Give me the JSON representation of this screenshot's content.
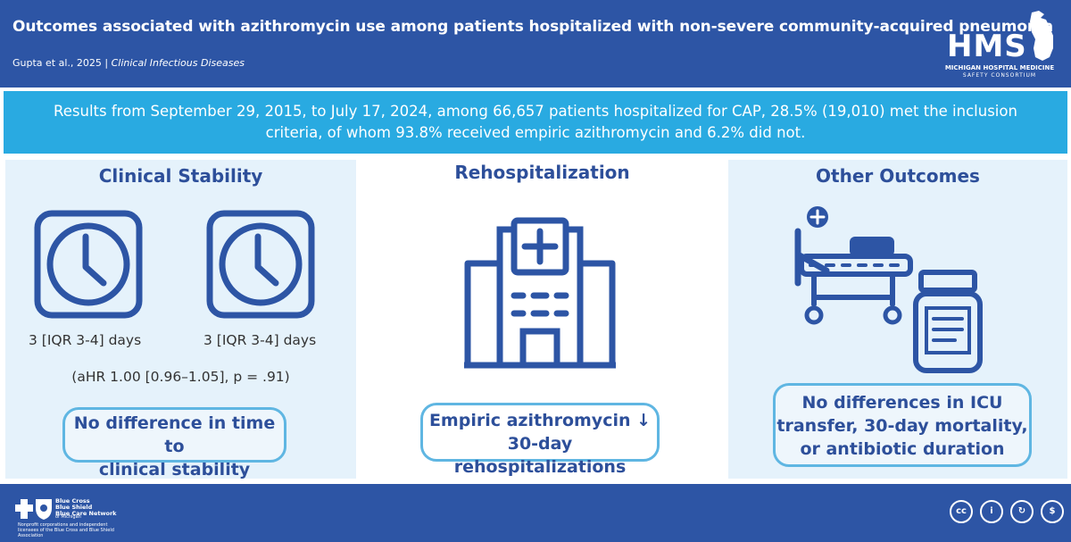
{
  "header": {
    "title": "Outcomes associated with azithromycin use among patients hospitalized with non-severe community-acquired pneumonia",
    "authors": "Gupta et al., 2025",
    "separator": "|",
    "journal": "Clinical Infectious Diseases",
    "logo": {
      "word": "HMS",
      "line1": "MICHIGAN HOSPITAL MEDICINE",
      "line2": "SAFETY CONSORTIUM"
    }
  },
  "results": {
    "text": "Results from September 29, 2015, to July 17, 2024, among 66,657 patients hospitalized for CAP, 28.5% (19,010) met the inclusion criteria, of whom 93.8% received empiric azithromycin and 6.2% did not."
  },
  "panels": {
    "clinical": {
      "title": "Clinical Stability",
      "left_days": "3 [IQR 3-4] days",
      "right_days": "3 [IQR 3-4] days",
      "ahr": "(aHR 1.00 [0.96–1.05], p = .91)",
      "conclusion_line1": "No difference in time to",
      "conclusion_line2": "clinical stability"
    },
    "rehosp": {
      "title": "Rehospitalization",
      "conclusion_line1": "Empiric azithromycin ↓",
      "conclusion_line2": "30-day rehospitalizations"
    },
    "other": {
      "title": "Other Outcomes",
      "conclusion_line1": "No differences in ICU",
      "conclusion_line2": "transfer, 30-day mortality,",
      "conclusion_line3": "or antibiotic duration"
    }
  },
  "footer": {
    "sponsor_name": "Blue Cross\nBlue Shield\nBlue Care Network",
    "sponsor_region": "of Michigan",
    "sponsor_note": "Nonprofit corporations and independent licensees of the Blue Cross and Blue Shield Association",
    "license_icons": [
      "cc-icon",
      "by-icon",
      "sa-icon",
      "nc-icon"
    ],
    "license_labels": [
      "cc",
      "i",
      "↻",
      "$"
    ]
  },
  "colors": {
    "header_blue": "#2d55a5",
    "results_blue": "#29aae1",
    "panel_bg": "#e5f2fb",
    "icon_blue": "#2d55a5",
    "pill_border": "#5fb6e2"
  }
}
